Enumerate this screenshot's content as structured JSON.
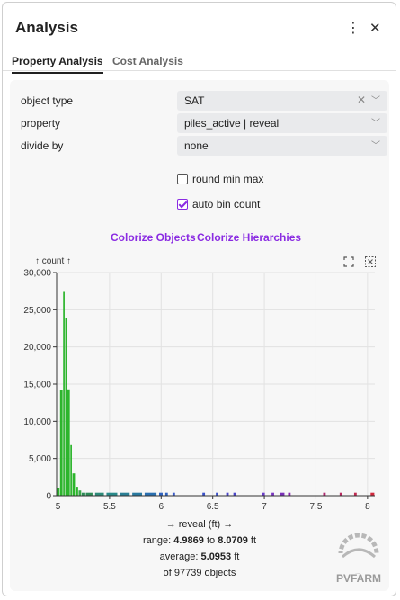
{
  "panel": {
    "title": "Analysis",
    "more_icon": "vertical-ellipsis-icon",
    "close_icon": "close-icon"
  },
  "tabs": [
    {
      "label": "Property Analysis",
      "active": true
    },
    {
      "label": "Cost Analysis",
      "active": false
    }
  ],
  "form": {
    "object_type": {
      "label": "object type",
      "value": "SAT"
    },
    "property": {
      "label": "property",
      "value": "piles_active | reveal"
    },
    "divide_by": {
      "label": "divide by",
      "value": "none"
    },
    "round_min_max": {
      "label": "round min max",
      "checked": false
    },
    "auto_bin_count": {
      "label": "auto bin count",
      "checked": true
    }
  },
  "actions": {
    "colorize_objects": "Colorize Objects",
    "colorize_hierarchies": "Colorize Hierarchies"
  },
  "chart_data": {
    "type": "bar",
    "ylabel": "↑ count ↑",
    "xlabel": "→ reveal (ft) →",
    "ylim": [
      0,
      30000
    ],
    "xlim": [
      4.9869,
      8.0709
    ],
    "y_ticks": [
      0,
      5000,
      10000,
      15000,
      20000,
      25000,
      30000
    ],
    "y_tick_labels": [
      "0",
      "5,000",
      "10,000",
      "15,000",
      "20,000",
      "25,000",
      "30,000"
    ],
    "x_ticks": [
      5,
      5.5,
      6,
      6.5,
      7,
      7.5,
      8
    ],
    "x_tick_labels": [
      "5",
      "5.5",
      "6",
      "6.5",
      "7",
      "7.5",
      "8"
    ],
    "grid": true,
    "bins": [
      {
        "x0": 4.9869,
        "x1": 5.02,
        "count": 1000,
        "color": "#2db52d"
      },
      {
        "x0": 5.02,
        "x1": 5.05,
        "count": 14200,
        "color": "#2db52d"
      },
      {
        "x0": 5.05,
        "x1": 5.07,
        "count": 27400,
        "color": "#2db52d"
      },
      {
        "x0": 5.07,
        "x1": 5.09,
        "count": 23900,
        "color": "#2db52d"
      },
      {
        "x0": 5.09,
        "x1": 5.12,
        "count": 14300,
        "color": "#2db52d"
      },
      {
        "x0": 5.12,
        "x1": 5.14,
        "count": 6800,
        "color": "#2db52d"
      },
      {
        "x0": 5.14,
        "x1": 5.17,
        "count": 3000,
        "color": "#2db52d"
      },
      {
        "x0": 5.17,
        "x1": 5.2,
        "count": 1200,
        "color": "#2db52d"
      },
      {
        "x0": 5.2,
        "x1": 5.23,
        "count": 700,
        "color": "#3aa84a"
      },
      {
        "x0": 5.23,
        "x1": 5.27,
        "count": 400,
        "color": "#2e8b57"
      },
      {
        "x0": 5.27,
        "x1": 5.34,
        "count": 400,
        "color": "#2e8b57"
      },
      {
        "x0": 5.36,
        "x1": 5.45,
        "count": 400,
        "color": "#2e8b7a"
      },
      {
        "x0": 5.47,
        "x1": 5.58,
        "count": 400,
        "color": "#2a8a8a"
      },
      {
        "x0": 5.6,
        "x1": 5.7,
        "count": 400,
        "color": "#2a7f95"
      },
      {
        "x0": 5.72,
        "x1": 5.82,
        "count": 400,
        "color": "#2a7aa0"
      },
      {
        "x0": 5.84,
        "x1": 5.96,
        "count": 400,
        "color": "#2a6fb0"
      },
      {
        "x0": 5.98,
        "x1": 6.02,
        "count": 400,
        "color": "#2f63c0"
      },
      {
        "x0": 6.04,
        "x1": 6.07,
        "count": 400,
        "color": "#2f63c0"
      },
      {
        "x0": 6.11,
        "x1": 6.14,
        "count": 400,
        "color": "#3a5ac8"
      },
      {
        "x0": 6.4,
        "x1": 6.43,
        "count": 400,
        "color": "#3a50c8"
      },
      {
        "x0": 6.53,
        "x1": 6.56,
        "count": 400,
        "color": "#3a50c8"
      },
      {
        "x0": 6.63,
        "x1": 6.66,
        "count": 400,
        "color": "#4a45c8"
      },
      {
        "x0": 6.7,
        "x1": 6.73,
        "count": 400,
        "color": "#4a45c8"
      },
      {
        "x0": 6.98,
        "x1": 7.01,
        "count": 400,
        "color": "#6a3cc8"
      },
      {
        "x0": 7.07,
        "x1": 7.1,
        "count": 400,
        "color": "#7a36c0"
      },
      {
        "x0": 7.15,
        "x1": 7.2,
        "count": 400,
        "color": "#7a30b8"
      },
      {
        "x0": 7.23,
        "x1": 7.26,
        "count": 400,
        "color": "#8a2ab0"
      },
      {
        "x0": 7.57,
        "x1": 7.6,
        "count": 400,
        "color": "#b02a70"
      },
      {
        "x0": 7.73,
        "x1": 7.76,
        "count": 400,
        "color": "#b82a60"
      },
      {
        "x0": 7.87,
        "x1": 7.9,
        "count": 400,
        "color": "#c02a50"
      },
      {
        "x0": 8.03,
        "x1": 8.0709,
        "count": 400,
        "color": "#d0283c"
      }
    ],
    "stats": {
      "range_prefix": "range:",
      "range_min": "4.9869",
      "range_to": "to",
      "range_max": "8.0709",
      "range_unit": "ft",
      "average_prefix": "average:",
      "average": "5.0953",
      "average_unit": "ft",
      "objects_text": "of 97739 objects"
    }
  },
  "chart_tools": {
    "reset_icon": "reset-zoom-icon",
    "select_icon": "box-select-icon"
  },
  "logo": {
    "text": "PVFARM"
  },
  "colors": {
    "accent": "#8a2be2",
    "primary_bar": "#2db52d"
  }
}
